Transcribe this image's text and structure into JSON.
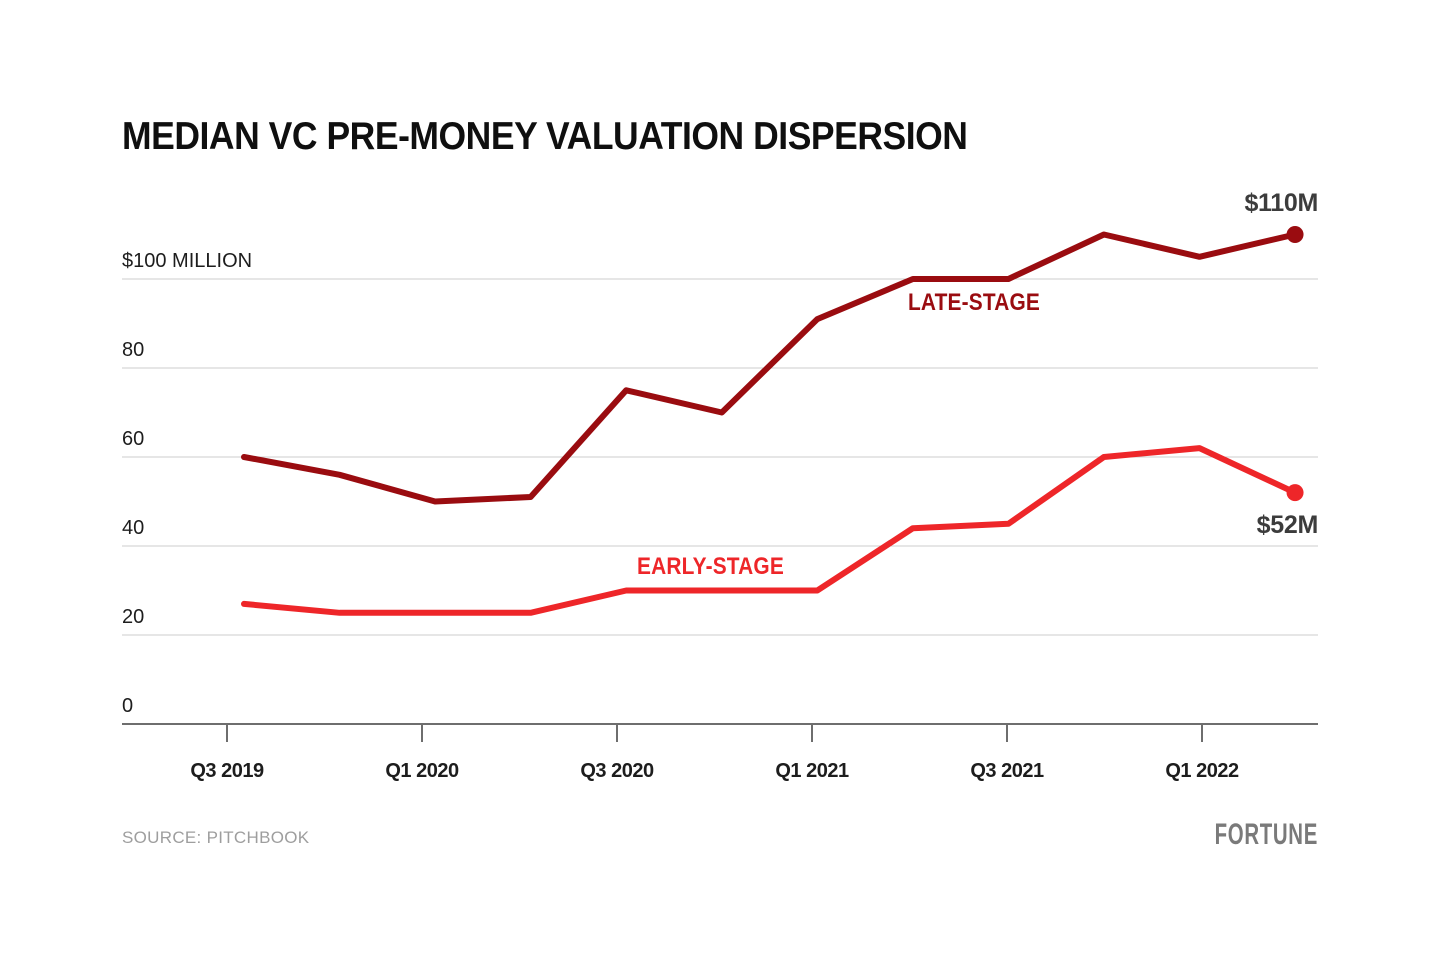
{
  "header": {
    "title": "MEDIAN VC PRE-MONEY VALUATION DISPERSION"
  },
  "footer": {
    "source": "SOURCE: PITCHBOOK",
    "brand": "FORTUNE"
  },
  "colors": {
    "late_stage": "#9A0C10",
    "early_stage": "#EE2629",
    "value_label": "#3C3C3C",
    "axis_text": "#1D1D1D",
    "gridline": "#CCCCCC",
    "axis_line": "#6E6E6E",
    "background": "#FFFFFF"
  },
  "chart_data": {
    "type": "line",
    "title": "MEDIAN VC PRE-MONEY VALUATION DISPERSION",
    "categories": [
      "Q3 2019",
      "Q4 2019",
      "Q1 2020",
      "Q2 2020",
      "Q3 2020",
      "Q4 2020",
      "Q1 2021",
      "Q2 2021",
      "Q3 2021",
      "Q4 2021",
      "Q1 2022",
      "Q2 2022"
    ],
    "series": [
      {
        "name": "LATE-STAGE",
        "color": "#9A0C10",
        "values": [
          60,
          56,
          50,
          51,
          75,
          70,
          91,
          100,
          100,
          110,
          105,
          110
        ],
        "end_label": "$110M",
        "end_value": 110
      },
      {
        "name": "EARLY-STAGE",
        "color": "#EE2629",
        "values": [
          27,
          25,
          25,
          25,
          30,
          30,
          30,
          44,
          45,
          60,
          62,
          52
        ],
        "end_label": "$52M",
        "end_value": 52
      }
    ],
    "x_axis": {
      "tick_labels": [
        "Q3 2019",
        "Q1 2020",
        "Q3 2020",
        "Q1 2021",
        "Q3 2021",
        "Q1 2022"
      ]
    },
    "y_axis": {
      "tick_labels": [
        "$100 MILLION",
        "80",
        "60",
        "40",
        "20",
        "0"
      ],
      "tick_values": [
        100,
        80,
        60,
        40,
        20,
        0
      ],
      "unit_label": "$100 MILLION"
    },
    "ylim": [
      0,
      118
    ],
    "grid": "horizontal",
    "legend_position": "inline-labels",
    "xlabel": "",
    "ylabel": ""
  }
}
